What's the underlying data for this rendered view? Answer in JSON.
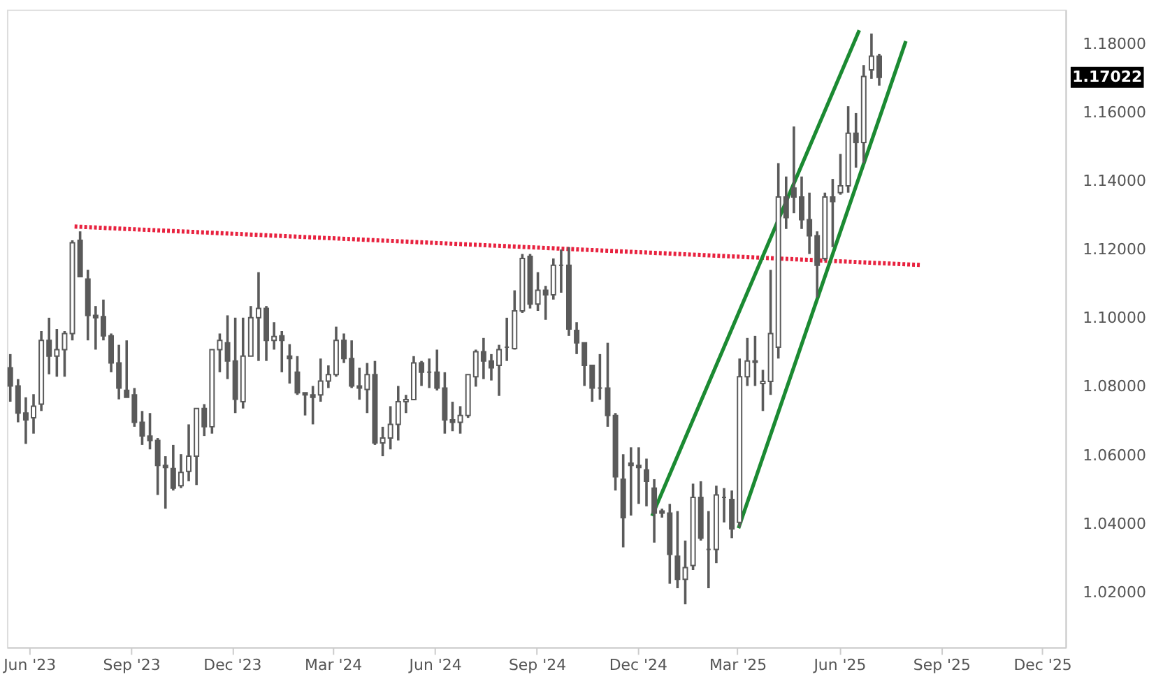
{
  "chart_data": {
    "type": "candlestick",
    "color": "#5a5a5a",
    "x": [
      "2023-05-15",
      "2023-05-22",
      "2023-05-29",
      "2023-06-05",
      "2023-06-12",
      "2023-06-19",
      "2023-06-26",
      "2023-07-03",
      "2023-07-10",
      "2023-07-17",
      "2023-07-24",
      "2023-07-31",
      "2023-08-07",
      "2023-08-14",
      "2023-08-21",
      "2023-08-28",
      "2023-09-04",
      "2023-09-11",
      "2023-09-18",
      "2023-09-25",
      "2023-10-02",
      "2023-10-09",
      "2023-10-16",
      "2023-10-23",
      "2023-10-30",
      "2023-11-06",
      "2023-11-13",
      "2023-11-20",
      "2023-11-27",
      "2023-12-04",
      "2023-12-11",
      "2023-12-18",
      "2023-12-25",
      "2024-01-01",
      "2024-01-08",
      "2024-01-15",
      "2024-01-22",
      "2024-01-29",
      "2024-02-05",
      "2024-02-12",
      "2024-02-19",
      "2024-02-26",
      "2024-03-04",
      "2024-03-11",
      "2024-03-18",
      "2024-03-25",
      "2024-04-01",
      "2024-04-08",
      "2024-04-15",
      "2024-04-22",
      "2024-04-29",
      "2024-05-06",
      "2024-05-13",
      "2024-05-20",
      "2024-05-27",
      "2024-06-03",
      "2024-06-10",
      "2024-06-17",
      "2024-06-24",
      "2024-07-01",
      "2024-07-08",
      "2024-07-15",
      "2024-07-22",
      "2024-07-29",
      "2024-08-05",
      "2024-08-12",
      "2024-08-19",
      "2024-08-26",
      "2024-09-02",
      "2024-09-09",
      "2024-09-16",
      "2024-09-23",
      "2024-09-30",
      "2024-10-07",
      "2024-10-14",
      "2024-10-21",
      "2024-10-28",
      "2024-11-04",
      "2024-11-11",
      "2024-11-18",
      "2024-11-25",
      "2024-12-02",
      "2024-12-09",
      "2024-12-16",
      "2024-12-23",
      "2024-12-30",
      "2025-01-06",
      "2025-01-13",
      "2025-01-20",
      "2025-01-27",
      "2025-02-03",
      "2025-02-10",
      "2025-02-17",
      "2025-02-24",
      "2025-03-03",
      "2025-03-10",
      "2025-03-17",
      "2025-03-24",
      "2025-03-31",
      "2025-04-07",
      "2025-04-14",
      "2025-04-21",
      "2025-04-28",
      "2025-05-05",
      "2025-05-12",
      "2025-05-19",
      "2025-05-26",
      "2025-06-02",
      "2025-06-09",
      "2025-06-16",
      "2025-06-23",
      "2025-06-30",
      "2025-07-07"
    ],
    "ohlc": [
      [
        1.0855,
        1.0895,
        1.0756,
        1.0802
      ],
      [
        1.0802,
        1.0822,
        1.0696,
        1.0723
      ],
      [
        1.0723,
        1.0769,
        1.0633,
        1.0703
      ],
      [
        1.0709,
        1.0778,
        1.0663,
        1.0743
      ],
      [
        1.0749,
        1.0962,
        1.0729,
        1.0935
      ],
      [
        1.0935,
        1.1001,
        1.0836,
        1.0889
      ],
      [
        1.0889,
        1.0968,
        1.0829,
        1.0908
      ],
      [
        1.0908,
        1.0962,
        1.0829,
        1.0955
      ],
      [
        1.0955,
        1.1227,
        1.0935,
        1.122
      ],
      [
        1.1227,
        1.1253,
        1.1121,
        1.1121
      ],
      [
        1.1114,
        1.1141,
        1.0935,
        1.1008
      ],
      [
        1.1008,
        1.1035,
        1.0908,
        1.1001
      ],
      [
        1.1004,
        1.1054,
        1.0935,
        1.0948
      ],
      [
        1.0948,
        1.0955,
        1.0842,
        1.0869
      ],
      [
        1.0869,
        1.0922,
        1.0763,
        1.0796
      ],
      [
        1.0789,
        1.0935,
        1.0769,
        1.0769
      ],
      [
        1.0776,
        1.0796,
        1.0683,
        1.0696
      ],
      [
        1.0696,
        1.0729,
        1.063,
        1.0656
      ],
      [
        1.0656,
        1.0723,
        1.0617,
        1.0643
      ],
      [
        1.0643,
        1.065,
        1.0484,
        1.057
      ],
      [
        1.057,
        1.0597,
        1.0444,
        1.0564
      ],
      [
        1.0561,
        1.063,
        1.0497,
        1.0504
      ],
      [
        1.0511,
        1.0603,
        1.0504,
        1.055
      ],
      [
        1.0553,
        1.069,
        1.0524,
        1.0597
      ],
      [
        1.0597,
        1.0736,
        1.0513,
        1.0736
      ],
      [
        1.0736,
        1.0749,
        1.0656,
        1.0683
      ],
      [
        1.0683,
        1.0908,
        1.0663,
        1.0908
      ],
      [
        1.0908,
        1.0955,
        1.0842,
        1.0935
      ],
      [
        1.0928,
        1.1008,
        1.0822,
        1.0875
      ],
      [
        1.0875,
        1.1001,
        1.0723,
        1.0763
      ],
      [
        1.0756,
        1.1001,
        1.0736,
        1.0889
      ],
      [
        1.0889,
        1.1035,
        1.0889,
        1.1001
      ],
      [
        1.1001,
        1.1134,
        1.0875,
        1.1028
      ],
      [
        1.1028,
        1.1035,
        1.0875,
        1.0935
      ],
      [
        1.0935,
        1.0988,
        1.0908,
        1.0946
      ],
      [
        1.0948,
        1.0962,
        1.0842,
        1.0935
      ],
      [
        1.0889,
        1.0924,
        1.0809,
        1.0882
      ],
      [
        1.0842,
        1.0889,
        1.0776,
        1.0782
      ],
      [
        1.0782,
        1.0782,
        1.0716,
        1.0776
      ],
      [
        1.0776,
        1.0802,
        1.069,
        1.0769
      ],
      [
        1.0776,
        1.0882,
        1.0756,
        1.0816
      ],
      [
        1.0816,
        1.0862,
        1.0796,
        1.0835
      ],
      [
        1.0835,
        1.0975,
        1.0829,
        1.0935
      ],
      [
        1.0935,
        1.0955,
        1.0869,
        1.0882
      ],
      [
        1.0882,
        1.0935,
        1.0796,
        1.0802
      ],
      [
        1.0802,
        1.0855,
        1.0762,
        1.0796
      ],
      [
        1.0792,
        1.0869,
        1.0723,
        1.0835
      ],
      [
        1.0835,
        1.0875,
        1.063,
        1.0636
      ],
      [
        1.0636,
        1.0683,
        1.0597,
        1.065
      ],
      [
        1.065,
        1.0743,
        1.0617,
        1.069
      ],
      [
        1.069,
        1.0802,
        1.0643,
        1.0756
      ],
      [
        1.0756,
        1.0776,
        1.0723,
        1.0762
      ],
      [
        1.0762,
        1.0889,
        1.0762,
        1.0869
      ],
      [
        1.0869,
        1.0875,
        1.0802,
        1.0842
      ],
      [
        1.0842,
        1.0882,
        1.0796,
        1.0842
      ],
      [
        1.0842,
        1.0908,
        1.0789,
        1.0796
      ],
      [
        1.0796,
        1.0842,
        1.0663,
        1.0703
      ],
      [
        1.0703,
        1.0756,
        1.067,
        1.0696
      ],
      [
        1.0696,
        1.0743,
        1.0663,
        1.0716
      ],
      [
        1.0716,
        1.0835,
        1.0709,
        1.0835
      ],
      [
        1.0829,
        1.0908,
        1.08,
        1.0902
      ],
      [
        1.0902,
        1.0942,
        1.0822,
        1.0875
      ],
      [
        1.0875,
        1.0895,
        1.0818,
        1.0855
      ],
      [
        1.0862,
        1.0922,
        1.0773,
        1.0908
      ],
      [
        1.0915,
        1.1001,
        1.0875,
        1.0915
      ],
      [
        1.0911,
        1.1081,
        1.0908,
        1.1021
      ],
      [
        1.1021,
        1.1187,
        1.1015,
        1.1174
      ],
      [
        1.118,
        1.1187,
        1.1028,
        1.1041
      ],
      [
        1.1041,
        1.1134,
        1.1021,
        1.1081
      ],
      [
        1.1081,
        1.1094,
        1.0995,
        1.1068
      ],
      [
        1.1068,
        1.1174,
        1.1054,
        1.1154
      ],
      [
        1.1154,
        1.12,
        1.1074,
        1.1154
      ],
      [
        1.1154,
        1.1207,
        1.0948,
        1.0968
      ],
      [
        1.0964,
        1.0988,
        1.0895,
        1.0928
      ],
      [
        1.0928,
        1.0928,
        1.0802,
        1.0862
      ],
      [
        1.0862,
        1.0862,
        1.0756,
        1.0796
      ],
      [
        1.0796,
        1.0895,
        1.0762,
        1.0796
      ],
      [
        1.0796,
        1.0928,
        1.0683,
        1.0716
      ],
      [
        1.0716,
        1.0723,
        1.0497,
        1.0537
      ],
      [
        1.053,
        1.0603,
        1.0331,
        1.0418
      ],
      [
        1.0577,
        1.0623,
        1.0424,
        1.057
      ],
      [
        1.057,
        1.0623,
        1.0458,
        1.0564
      ],
      [
        1.0557,
        1.059,
        1.0451,
        1.0524
      ],
      [
        1.0504,
        1.053,
        1.0345,
        1.0431
      ],
      [
        1.0437,
        1.0444,
        1.0418,
        1.0431
      ],
      [
        1.0431,
        1.0458,
        1.0225,
        1.0311
      ],
      [
        1.0305,
        1.0437,
        1.0212,
        1.0238
      ],
      [
        1.0238,
        1.0351,
        1.0165,
        1.0272
      ],
      [
        1.0278,
        1.0517,
        1.0265,
        1.0477
      ],
      [
        1.0477,
        1.0524,
        1.0351,
        1.0358
      ],
      [
        1.0325,
        1.0437,
        1.0212,
        1.0325
      ],
      [
        1.0325,
        1.0511,
        1.0285,
        1.0484
      ],
      [
        1.0477,
        1.0504,
        1.0404,
        1.0477
      ],
      [
        1.0471,
        1.0497,
        1.0358,
        1.0385
      ],
      [
        1.0404,
        1.0882,
        1.0391,
        1.0829
      ],
      [
        1.0829,
        1.0942,
        1.0802,
        1.0875
      ],
      [
        1.0875,
        1.0948,
        1.0802,
        1.0871
      ],
      [
        1.0809,
        1.0849,
        1.0729,
        1.0815
      ],
      [
        1.0815,
        1.1141,
        1.0776,
        1.0955
      ],
      [
        1.0915,
        1.1452,
        1.0882,
        1.1353
      ],
      [
        1.1353,
        1.1413,
        1.126,
        1.1293
      ],
      [
        1.1379,
        1.1559,
        1.1306,
        1.1353
      ],
      [
        1.1353,
        1.1413,
        1.126,
        1.1287
      ],
      [
        1.1287,
        1.1366,
        1.1187,
        1.124
      ],
      [
        1.124,
        1.1253,
        1.1061,
        1.1154
      ],
      [
        1.1174,
        1.1366,
        1.1167,
        1.1353
      ],
      [
        1.1353,
        1.1406,
        1.1207,
        1.134
      ],
      [
        1.1366,
        1.1479,
        1.136,
        1.1386
      ],
      [
        1.1386,
        1.1618,
        1.1366,
        1.1539
      ],
      [
        1.1539,
        1.1598,
        1.1439,
        1.1512
      ],
      [
        1.1512,
        1.1738,
        1.1452,
        1.1705
      ],
      [
        1.1724,
        1.183,
        1.1698,
        1.1764
      ],
      [
        1.1764,
        1.1771,
        1.1678,
        1.17022
      ]
    ],
    "series": [
      {
        "type": "line",
        "x": [
          "2023-07-12",
          "2025-08-13"
        ],
        "values": [
          1.1267,
          1.1155
        ],
        "color": "#e8223f",
        "line_style": "dotted"
      },
      {
        "type": "line",
        "x": [
          "2024-12-14",
          "2025-06-19"
        ],
        "values": [
          1.0423,
          1.184
        ],
        "color": "#1b8a32",
        "line_style": "solid"
      },
      {
        "type": "line",
        "x": [
          "2025-03-02",
          "2025-07-31"
        ],
        "values": [
          1.0387,
          1.1808
        ],
        "color": "#1b8a32",
        "line_style": "solid"
      }
    ],
    "xlim": [
      "2023-05-12",
      "2025-12-22"
    ],
    "xticks": [
      {
        "value": "2023-06-01",
        "label": "Jun '23"
      },
      {
        "value": "2023-09-01",
        "label": "Sep '23"
      },
      {
        "value": "2023-12-01",
        "label": "Dec '23"
      },
      {
        "value": "2024-03-01",
        "label": "Mar '24"
      },
      {
        "value": "2024-06-01",
        "label": "Jun '24"
      },
      {
        "value": "2024-09-01",
        "label": "Sep '24"
      },
      {
        "value": "2024-12-01",
        "label": "Dec '24"
      },
      {
        "value": "2025-03-01",
        "label": "Mar '25"
      },
      {
        "value": "2025-06-01",
        "label": "Jun '25"
      },
      {
        "value": "2025-09-01",
        "label": "Sep '25"
      },
      {
        "value": "2025-12-01",
        "label": "Dec '25"
      }
    ],
    "ylim": [
      1.004,
      1.19
    ],
    "yticks": [
      {
        "value": 1.02,
        "label": "1.02000"
      },
      {
        "value": 1.04,
        "label": "1.04000"
      },
      {
        "value": 1.06,
        "label": "1.06000"
      },
      {
        "value": 1.08,
        "label": "1.08000"
      },
      {
        "value": 1.1,
        "label": "1.10000"
      },
      {
        "value": 1.12,
        "label": "1.12000"
      },
      {
        "value": 1.14,
        "label": "1.14000"
      },
      {
        "value": 1.16,
        "label": "1.16000"
      },
      {
        "value": 1.18,
        "label": "1.18000"
      }
    ],
    "annotations": [
      "1.17022"
    ]
  }
}
